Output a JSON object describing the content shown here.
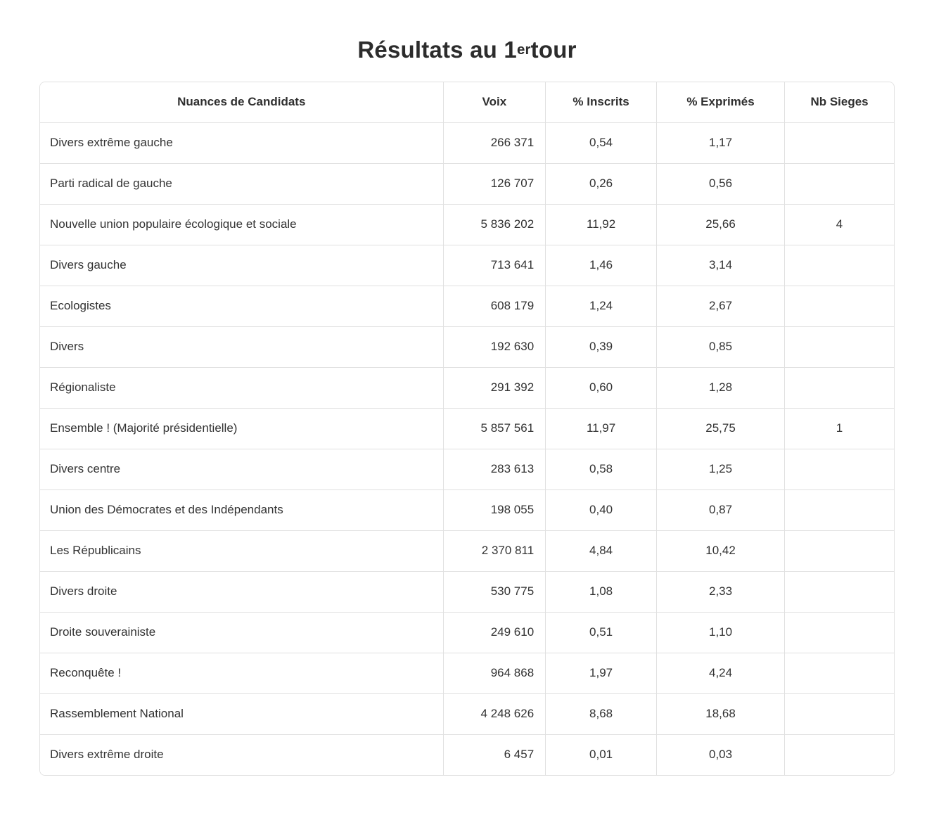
{
  "page": {
    "title": {
      "before_sup": "Résultats au 1",
      "sup": "er",
      "after_sup": " tour"
    }
  },
  "colors": {
    "text": "#333333",
    "title": "#2c2c2c",
    "border": "#e1e1e1",
    "background": "#ffffff"
  },
  "chart_data": {
    "type": "table",
    "title": "Résultats au 1er tour",
    "columns": [
      "Nuances de Candidats",
      "Voix",
      "% Inscrits",
      "% Exprimés",
      "Nb Sieges"
    ],
    "rows": [
      [
        "Divers extrême gauche",
        "266 371",
        "0,54",
        "1,17",
        ""
      ],
      [
        "Parti radical de gauche",
        "126 707",
        "0,26",
        "0,56",
        ""
      ],
      [
        "Nouvelle union populaire écologique et sociale",
        "5 836 202",
        "11,92",
        "25,66",
        "4"
      ],
      [
        "Divers gauche",
        "713 641",
        "1,46",
        "3,14",
        ""
      ],
      [
        "Ecologistes",
        "608 179",
        "1,24",
        "2,67",
        ""
      ],
      [
        "Divers",
        "192 630",
        "0,39",
        "0,85",
        ""
      ],
      [
        "Régionaliste",
        "291 392",
        "0,60",
        "1,28",
        ""
      ],
      [
        "Ensemble ! (Majorité présidentielle)",
        "5 857 561",
        "11,97",
        "25,75",
        "1"
      ],
      [
        "Divers centre",
        "283 613",
        "0,58",
        "1,25",
        ""
      ],
      [
        "Union des Démocrates et des Indépendants",
        "198 055",
        "0,40",
        "0,87",
        ""
      ],
      [
        "Les Républicains",
        "2 370 811",
        "4,84",
        "10,42",
        ""
      ],
      [
        "Divers droite",
        "530 775",
        "1,08",
        "2,33",
        ""
      ],
      [
        "Droite souverainiste",
        "249 610",
        "0,51",
        "1,10",
        ""
      ],
      [
        "Reconquête !",
        "964 868",
        "1,97",
        "4,24",
        ""
      ],
      [
        "Rassemblement National",
        "4 248 626",
        "8,68",
        "18,68",
        ""
      ],
      [
        "Divers extrême droite",
        "6 457",
        "0,01",
        "0,03",
        ""
      ]
    ]
  }
}
